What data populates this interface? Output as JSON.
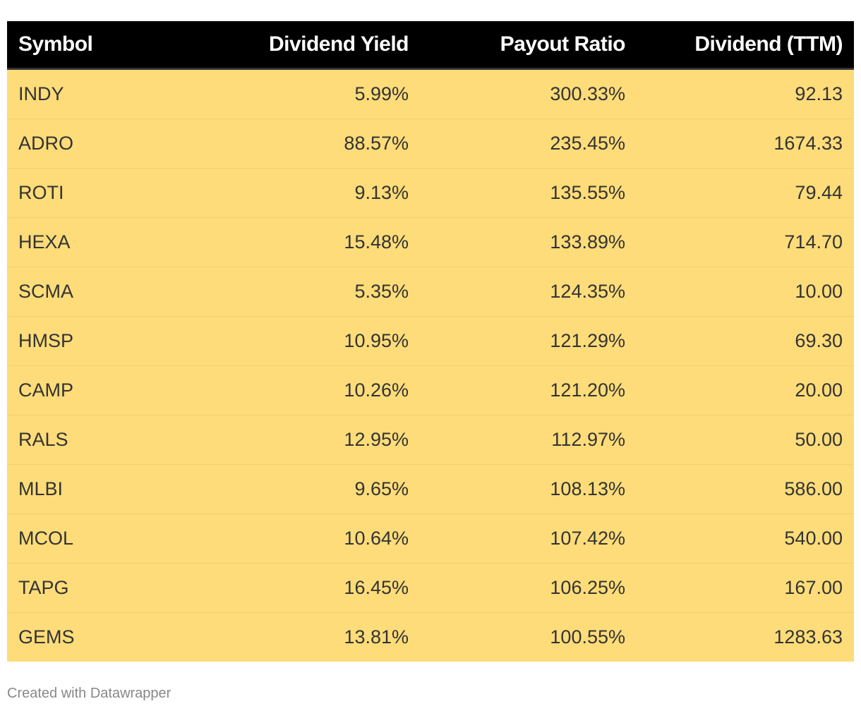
{
  "chart_data": {
    "type": "table",
    "columns": [
      "Symbol",
      "Dividend Yield",
      "Payout Ratio",
      "Dividend (TTM)"
    ],
    "rows": [
      [
        "INDY",
        "5.99%",
        "300.33%",
        "92.13"
      ],
      [
        "ADRO",
        "88.57%",
        "235.45%",
        "1674.33"
      ],
      [
        "ROTI",
        "9.13%",
        "135.55%",
        "79.44"
      ],
      [
        "HEXA",
        "15.48%",
        "133.89%",
        "714.70"
      ],
      [
        "SCMA",
        "5.35%",
        "124.35%",
        "10.00"
      ],
      [
        "HMSP",
        "10.95%",
        "121.29%",
        "69.30"
      ],
      [
        "CAMP",
        "10.26%",
        "121.20%",
        "20.00"
      ],
      [
        "RALS",
        "12.95%",
        "112.97%",
        "50.00"
      ],
      [
        "MLBI",
        "9.65%",
        "108.13%",
        "586.00"
      ],
      [
        "MCOL",
        "10.64%",
        "107.42%",
        "540.00"
      ],
      [
        "TAPG",
        "16.45%",
        "106.25%",
        "167.00"
      ],
      [
        "GEMS",
        "13.81%",
        "100.55%",
        "1283.63"
      ]
    ],
    "colors": {
      "header_background": "#000000",
      "header_text": "#ffffff",
      "row_background": "#fddc79",
      "row_text": "#333333"
    }
  },
  "footer": {
    "credit": "Created with Datawrapper"
  }
}
